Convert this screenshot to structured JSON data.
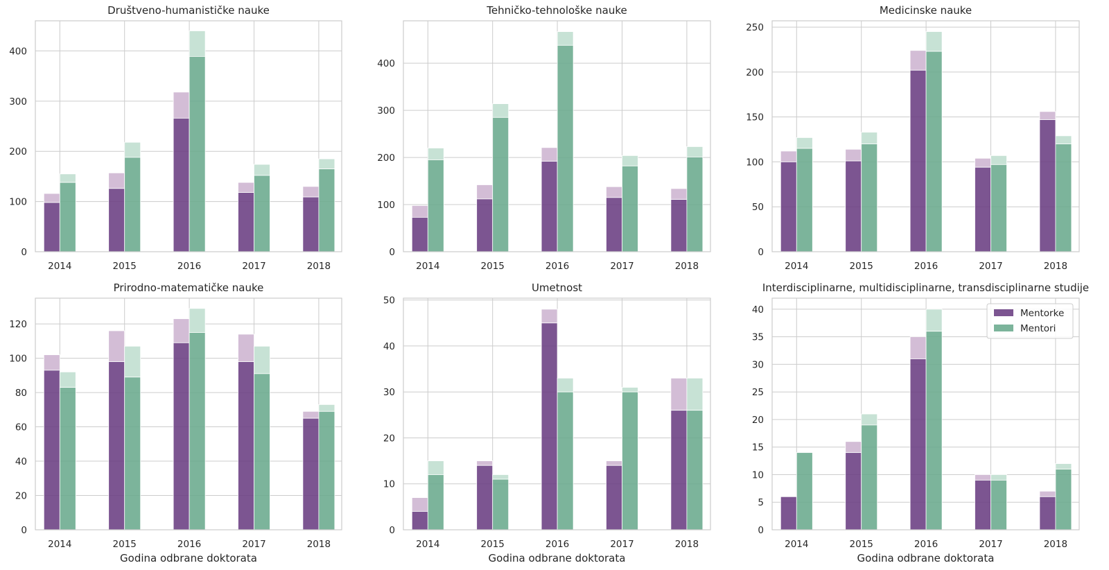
{
  "legend": {
    "items": [
      {
        "label": "Mentorke",
        "color": "#6a3d82"
      },
      {
        "label": "Mentori",
        "color": "#6aaa8d"
      }
    ],
    "placement": "top-right of last panel"
  },
  "colors": {
    "mentorke_solid": "#6a3d82",
    "mentori_solid": "#6aaa8d",
    "mentorke_light": "#d3bdd6",
    "mentori_light": "#c7e2d5",
    "grid": "#cccccc",
    "axes_edge": "#cccccc"
  },
  "chart_data": [
    {
      "type": "bar",
      "title": "Društveno-humanističke nauke",
      "xlabel": "",
      "ylabel": "",
      "categories": [
        "2014",
        "2015",
        "2016",
        "2017",
        "2018"
      ],
      "ylim": [
        0,
        460
      ],
      "yticks": [
        0,
        100,
        200,
        300,
        400
      ],
      "series": [
        {
          "name": "Mentorke",
          "values": [
            98,
            126,
            266,
            118,
            109
          ],
          "upper": [
            116,
            157,
            318,
            138,
            130
          ]
        },
        {
          "name": "Mentori",
          "values": [
            138,
            188,
            389,
            152,
            165
          ],
          "upper": [
            155,
            218,
            440,
            174,
            185
          ]
        }
      ],
      "grid": true
    },
    {
      "type": "bar",
      "title": "Tehničko-tehnološke nauke",
      "xlabel": "",
      "ylabel": "",
      "categories": [
        "2014",
        "2015",
        "2016",
        "2017",
        "2018"
      ],
      "ylim": [
        0,
        490
      ],
      "yticks": [
        0,
        100,
        200,
        300,
        400
      ],
      "series": [
        {
          "name": "Mentorke",
          "values": [
            73,
            112,
            192,
            115,
            111
          ],
          "upper": [
            98,
            142,
            221,
            138,
            134
          ]
        },
        {
          "name": "Mentori",
          "values": [
            195,
            285,
            438,
            182,
            201
          ],
          "upper": [
            220,
            314,
            467,
            204,
            223
          ]
        }
      ],
      "grid": true
    },
    {
      "type": "bar",
      "title": "Medicinske nauke",
      "xlabel": "",
      "ylabel": "",
      "categories": [
        "2014",
        "2015",
        "2016",
        "2017",
        "2018"
      ],
      "ylim": [
        0,
        257
      ],
      "yticks": [
        0,
        50,
        100,
        150,
        200,
        250
      ],
      "series": [
        {
          "name": "Mentorke",
          "values": [
            100,
            101,
            202,
            94,
            147
          ],
          "upper": [
            112,
            114,
            224,
            104,
            156
          ]
        },
        {
          "name": "Mentori",
          "values": [
            115,
            120,
            223,
            97,
            120
          ],
          "upper": [
            127,
            133,
            245,
            107,
            129
          ]
        }
      ],
      "grid": true
    },
    {
      "type": "bar",
      "title": "Prirodno-matematičke nauke",
      "xlabel": "Godina odbrane doktorata",
      "ylabel": "",
      "categories": [
        "2014",
        "2015",
        "2016",
        "2017",
        "2018"
      ],
      "ylim": [
        0,
        135
      ],
      "yticks": [
        0,
        20,
        40,
        60,
        80,
        100,
        120
      ],
      "series": [
        {
          "name": "Mentorke",
          "values": [
            93,
            98,
            109,
            98,
            65
          ],
          "upper": [
            102,
            116,
            123,
            114,
            69
          ]
        },
        {
          "name": "Mentori",
          "values": [
            83,
            89,
            115,
            91,
            69
          ],
          "upper": [
            92,
            107,
            129,
            107,
            73
          ]
        }
      ],
      "grid": true
    },
    {
      "type": "bar",
      "title": "Umetnost",
      "xlabel": "Godina odbrane doktorata",
      "ylabel": "",
      "categories": [
        "2014",
        "2015",
        "2016",
        "2017",
        "2018"
      ],
      "ylim": [
        0,
        50.4
      ],
      "yticks": [
        0,
        10,
        20,
        30,
        40,
        50
      ],
      "series": [
        {
          "name": "Mentorke",
          "values": [
            4,
            14,
            45,
            14,
            26
          ],
          "upper": [
            7,
            15,
            48,
            15,
            33
          ]
        },
        {
          "name": "Mentori",
          "values": [
            12,
            11,
            30,
            30,
            26
          ],
          "upper": [
            15,
            12,
            33,
            31,
            33
          ]
        }
      ],
      "grid": true
    },
    {
      "type": "bar",
      "title": "Interdisciplinarne, multidisciplinarne, transdisciplinarne studije",
      "xlabel": "Godina odbrane doktorata",
      "ylabel": "",
      "categories": [
        "2014",
        "2015",
        "2016",
        "2017",
        "2018"
      ],
      "ylim": [
        0,
        42
      ],
      "yticks": [
        0,
        5,
        10,
        15,
        20,
        25,
        30,
        35,
        40
      ],
      "series": [
        {
          "name": "Mentorke",
          "values": [
            6,
            14,
            31,
            9,
            6
          ],
          "upper": [
            6,
            16,
            35,
            10,
            7
          ]
        },
        {
          "name": "Mentori",
          "values": [
            14,
            19,
            36,
            9,
            11
          ],
          "upper": [
            14,
            21,
            40,
            10,
            12
          ]
        }
      ],
      "grid": true
    }
  ]
}
